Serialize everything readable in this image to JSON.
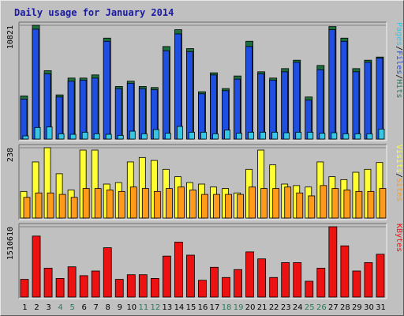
{
  "title": "Daily usage for January 2014",
  "colors": {
    "pages": "#1f4fe0",
    "files": "#1f4fe0",
    "hits": "#35c8e6",
    "visits": "#ffff33",
    "sites": "#ff9a1a",
    "kbytes": "#ee1111",
    "weekend_label": "#2a7a5a",
    "weekday_label": "#000000"
  },
  "chart_data": [
    {
      "type": "bar",
      "panel": "pages-files-hits",
      "ymax_label": "10821",
      "ylim": [
        0,
        10821
      ],
      "legend": [
        {
          "text": "Pages",
          "color": "#35c8e6"
        },
        {
          "text": "/",
          "color": "#000000"
        },
        {
          "text": "Files",
          "color": "#1f4fe0"
        },
        {
          "text": "/",
          "color": "#000000"
        },
        {
          "text": "Hits",
          "color": "#2a7a5a"
        }
      ],
      "categories": [
        "1",
        "2",
        "3",
        "4",
        "5",
        "6",
        "7",
        "8",
        "9",
        "10",
        "11",
        "12",
        "13",
        "14",
        "15",
        "16",
        "17",
        "18",
        "19",
        "20",
        "21",
        "22",
        "23",
        "24",
        "25",
        "26",
        "27",
        "28",
        "29",
        "30",
        "31"
      ],
      "series": [
        {
          "name": "Hits",
          "values": [
            4100,
            10820,
            6500,
            4200,
            5800,
            5800,
            6100,
            9600,
            5000,
            5500,
            5000,
            4900,
            8800,
            10400,
            8600,
            4500,
            6300,
            4800,
            6000,
            9300,
            6400,
            5800,
            6700,
            7500,
            4000,
            7000,
            10700,
            9600,
            6700,
            7500,
            7800
          ]
        },
        {
          "name": "Files",
          "values": [
            3800,
            10450,
            6200,
            4000,
            5500,
            5600,
            5800,
            9300,
            4800,
            5300,
            4800,
            4700,
            8400,
            10000,
            8300,
            4300,
            6100,
            4600,
            5700,
            8800,
            6200,
            5600,
            6400,
            7300,
            3700,
            6600,
            10400,
            9300,
            6400,
            7300,
            7700
          ]
        },
        {
          "name": "Pages",
          "values": [
            300,
            1100,
            1150,
            500,
            450,
            650,
            500,
            450,
            350,
            750,
            500,
            900,
            550,
            1200,
            650,
            650,
            500,
            850,
            550,
            650,
            650,
            650,
            600,
            650,
            650,
            550,
            600,
            500,
            500,
            500,
            950
          ]
        }
      ]
    },
    {
      "type": "bar",
      "panel": "visits-sites",
      "ymax_label": "238",
      "ylim": [
        0,
        238
      ],
      "legend": [
        {
          "text": "Visits",
          "color": "#ffff33"
        },
        {
          "text": "/",
          "color": "#000000"
        },
        {
          "text": "Sites",
          "color": "#ff9a1a"
        }
      ],
      "categories": [
        "1",
        "2",
        "3",
        "4",
        "5",
        "6",
        "7",
        "8",
        "9",
        "10",
        "11",
        "12",
        "13",
        "14",
        "15",
        "16",
        "17",
        "18",
        "19",
        "20",
        "21",
        "22",
        "23",
        "24",
        "25",
        "26",
        "27",
        "28",
        "29",
        "30",
        "31"
      ],
      "series": [
        {
          "name": "Visits",
          "values": [
            90,
            190,
            238,
            150,
            95,
            230,
            230,
            115,
            120,
            190,
            205,
            195,
            165,
            140,
            120,
            115,
            105,
            100,
            85,
            165,
            230,
            180,
            115,
            110,
            105,
            190,
            140,
            130,
            155,
            165,
            188
          ]
        },
        {
          "name": "Sites",
          "values": [
            70,
            85,
            85,
            80,
            70,
            100,
            100,
            95,
            90,
            105,
            100,
            90,
            100,
            105,
            95,
            80,
            80,
            80,
            80,
            105,
            100,
            100,
            105,
            85,
            75,
            110,
            100,
            95,
            90,
            90,
            100
          ]
        }
      ]
    },
    {
      "type": "bar",
      "panel": "kbytes",
      "ymax_label": "1510610",
      "ylim": [
        0,
        1510610
      ],
      "legend": [
        {
          "text": "KBytes",
          "color": "#ee1111"
        }
      ],
      "categories": [
        "1",
        "2",
        "3",
        "4",
        "5",
        "6",
        "7",
        "8",
        "9",
        "10",
        "11",
        "12",
        "13",
        "14",
        "15",
        "16",
        "17",
        "18",
        "19",
        "20",
        "21",
        "22",
        "23",
        "24",
        "25",
        "26",
        "27",
        "28",
        "29",
        "30",
        "31"
      ],
      "series": [
        {
          "name": "KBytes",
          "values": [
            380000,
            1310000,
            620000,
            400000,
            650000,
            460000,
            560000,
            1060000,
            380000,
            480000,
            480000,
            400000,
            880000,
            1180000,
            900000,
            360000,
            640000,
            420000,
            590000,
            970000,
            820000,
            420000,
            740000,
            740000,
            340000,
            620000,
            1510610,
            1100000,
            560000,
            740000,
            920000
          ]
        }
      ]
    }
  ]
}
